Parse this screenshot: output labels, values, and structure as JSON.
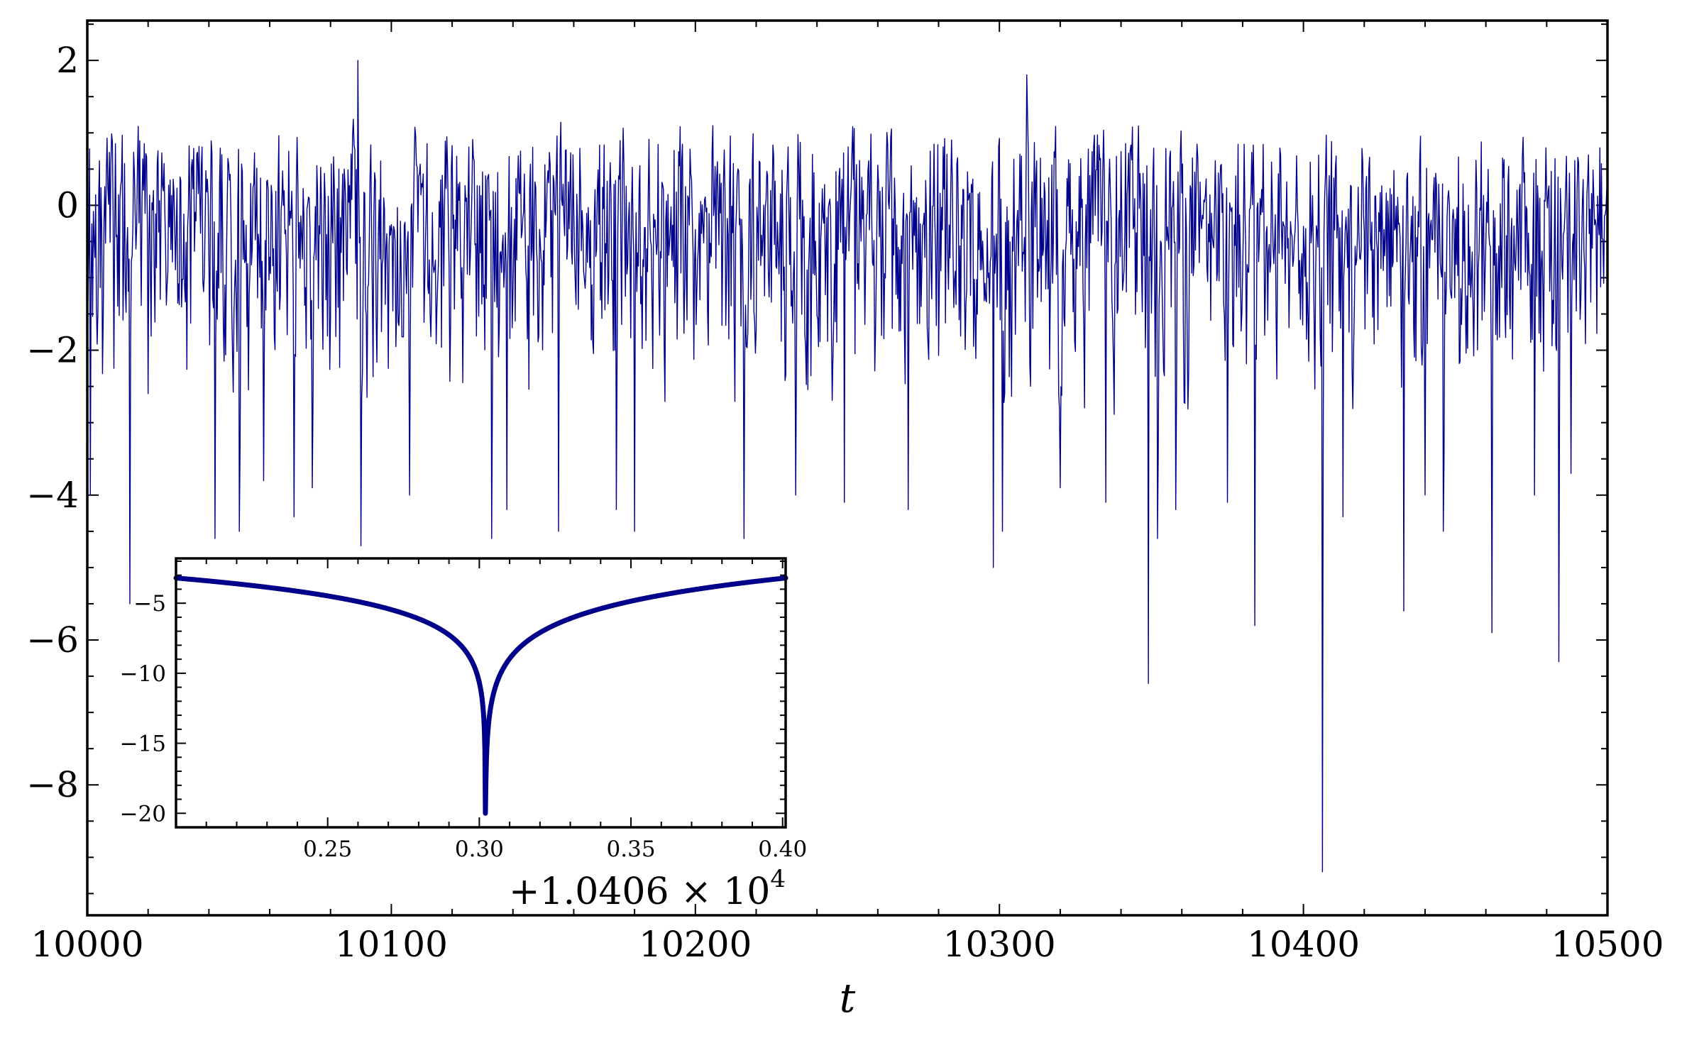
{
  "chart_data": [
    {
      "type": "line",
      "panel": "main",
      "xlabel": "t",
      "ylabel": "",
      "xlim": [
        10000,
        10500
      ],
      "ylim": [
        -9.8,
        2.55
      ],
      "xticks": [
        10000,
        10100,
        10200,
        10300,
        10400,
        10500
      ],
      "xtick_labels": [
        "10000",
        "10100",
        "10200",
        "10300",
        "10400",
        "10500"
      ],
      "yticks": [
        2,
        0,
        -2,
        -4,
        -6,
        -8
      ],
      "ytick_labels": [
        "2",
        "0",
        "−2",
        "−4",
        "−6",
        "−8"
      ],
      "grid": false,
      "series": [
        {
          "sample_interval": 0.25,
          "typical_range": [
            -3.2,
            1.3
          ],
          "spikes": [
            {
              "x": 10001,
              "y": -4.0
            },
            {
              "x": 10014,
              "y": -5.5
            },
            {
              "x": 10020,
              "y": -2.6
            },
            {
              "x": 10042,
              "y": -4.6
            },
            {
              "x": 10050,
              "y": -4.5
            },
            {
              "x": 10058,
              "y": -3.8
            },
            {
              "x": 10068,
              "y": -4.3
            },
            {
              "x": 10074,
              "y": -3.9
            },
            {
              "x": 10089,
              "y": 2.0
            },
            {
              "x": 10090,
              "y": -4.7
            },
            {
              "x": 10106,
              "y": -4.0
            },
            {
              "x": 10133,
              "y": -4.6
            },
            {
              "x": 10138,
              "y": -4.2
            },
            {
              "x": 10155,
              "y": -4.5
            },
            {
              "x": 10174,
              "y": -4.2
            },
            {
              "x": 10180,
              "y": -4.5
            },
            {
              "x": 10216,
              "y": -4.6
            },
            {
              "x": 10233,
              "y": -4.0
            },
            {
              "x": 10249,
              "y": -4.1
            },
            {
              "x": 10270,
              "y": -4.2
            },
            {
              "x": 10298,
              "y": -5.0
            },
            {
              "x": 10301,
              "y": -4.5
            },
            {
              "x": 10309,
              "y": 1.8
            },
            {
              "x": 10320,
              "y": -3.9
            },
            {
              "x": 10335,
              "y": -4.1
            },
            {
              "x": 10349,
              "y": -6.6
            },
            {
              "x": 10352,
              "y": -4.6
            },
            {
              "x": 10358,
              "y": -4.2
            },
            {
              "x": 10375,
              "y": -4.1
            },
            {
              "x": 10384,
              "y": -5.8
            },
            {
              "x": 10406.3,
              "y": -9.2
            },
            {
              "x": 10413,
              "y": -4.3
            },
            {
              "x": 10433,
              "y": -5.6
            },
            {
              "x": 10440,
              "y": -4.0
            },
            {
              "x": 10446,
              "y": -4.5
            },
            {
              "x": 10462,
              "y": -5.9
            },
            {
              "x": 10476,
              "y": -4.0
            },
            {
              "x": 10484,
              "y": -6.3
            },
            {
              "x": 10488,
              "y": -3.7
            }
          ]
        }
      ]
    },
    {
      "type": "line",
      "panel": "inset",
      "xlabel": "",
      "ylabel": "",
      "xlim": [
        10406.2,
        10406.401
      ],
      "ylim": [
        -21,
        -1.8
      ],
      "xticks": [
        10406.25,
        10406.3,
        10406.35,
        10406.4
      ],
      "xtick_labels": [
        "0.25",
        "0.30",
        "0.35",
        "0.40"
      ],
      "yticks": [
        -5,
        -10,
        -15,
        -20
      ],
      "ytick_labels": [
        "−5",
        "−10",
        "−15",
        "−20"
      ],
      "offset_text": "+1.0406 × 10",
      "offset_exponent": "4",
      "grid": false,
      "series": [
        {
          "x": [
            10406.2,
            10406.225,
            10406.25,
            10406.27,
            10406.285,
            10406.295,
            10406.3,
            10406.301,
            10406.302,
            10406.303,
            10406.305,
            10406.31,
            10406.32,
            10406.34,
            10406.36,
            10406.38,
            10406.401
          ],
          "y": [
            -3.2,
            -3.5,
            -4.1,
            -5.1,
            -6.6,
            -9.1,
            -12.4,
            -14.5,
            -20.0,
            -14.5,
            -11.2,
            -8.9,
            -7.1,
            -5.6,
            -4.6,
            -3.9,
            -3.2
          ]
        }
      ]
    },
    {
      "colors": {
        "series": "#00008b",
        "axes": "#000000",
        "background": "#ffffff"
      }
    }
  ]
}
